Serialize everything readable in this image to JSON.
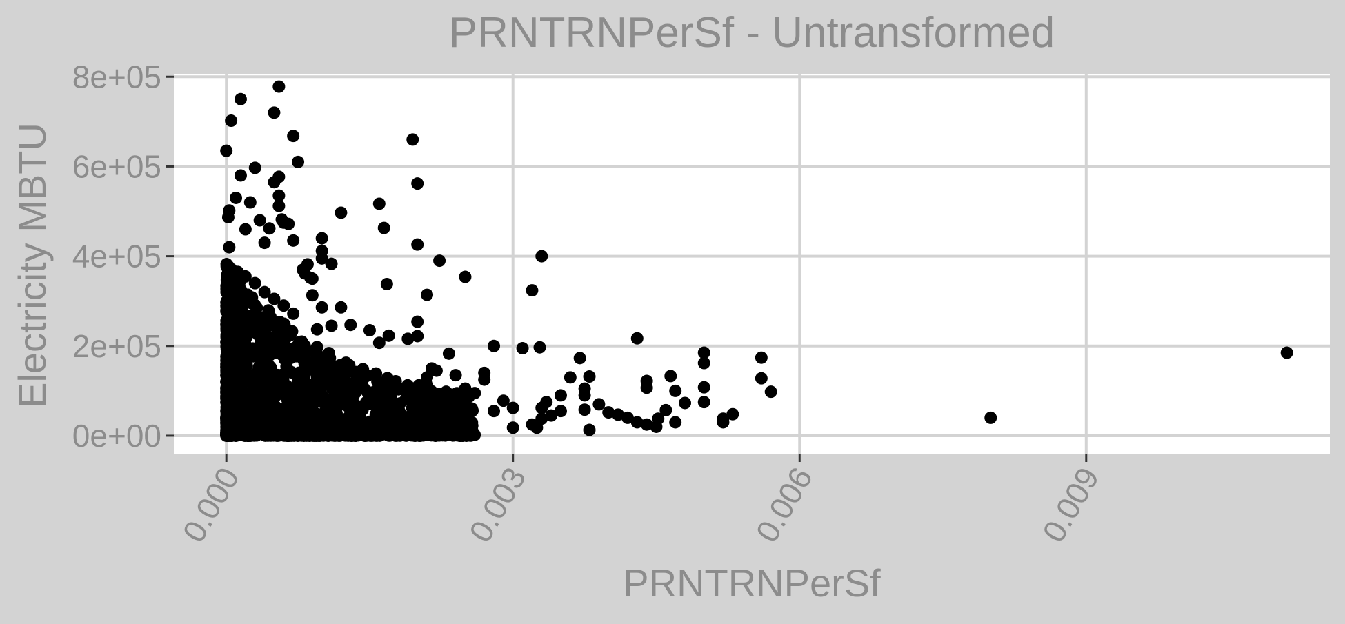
{
  "chart_data": {
    "type": "scatter",
    "title": "PRNTRNPerSf - Untransformed",
    "xlabel": "PRNTRNPerSf",
    "ylabel": "Electricity MBTU",
    "xlim": [
      -0.00055,
      0.01155
    ],
    "ylim": [
      -40000,
      805000
    ],
    "x_ticks": [
      0,
      0.003,
      0.006,
      0.009
    ],
    "x_tick_labels": [
      "0.000",
      "0.003",
      "0.006",
      "0.009"
    ],
    "y_ticks": [
      0,
      200000,
      400000,
      600000,
      800000
    ],
    "y_tick_labels": [
      "0e+00",
      "2e+05",
      "4e+05",
      "6e+05",
      "8e+05"
    ],
    "grid": true,
    "colors": {
      "panel_background": "#ffffff",
      "plot_background": "#d3d3d3",
      "grid": "#d3d3d3",
      "text": "#8c8c8c",
      "points": "#000000"
    },
    "points": [
      [
        0.0,
        635000
      ],
      [
        3e-05,
        502000
      ],
      [
        2e-05,
        487000
      ],
      [
        3e-05,
        420000
      ],
      [
        2e-05,
        378000
      ],
      [
        2e-05,
        370000
      ],
      [
        1e-05,
        350000
      ],
      [
        4e-05,
        300000
      ],
      [
        0.0001,
        530000
      ],
      [
        0.00015,
        580000
      ],
      [
        0.0002,
        460000
      ],
      [
        0.00025,
        520000
      ],
      [
        0.0003,
        597000
      ],
      [
        0.00035,
        480000
      ],
      [
        0.0004,
        430000
      ],
      [
        0.00045,
        462000
      ],
      [
        0.0005,
        565000
      ],
      [
        0.00055,
        577000
      ],
      [
        0.00055,
        535000
      ],
      [
        0.00055,
        512000
      ],
      [
        0.00058,
        482000
      ],
      [
        0.0006,
        475000
      ],
      [
        0.00065,
        472000
      ],
      [
        0.0007,
        435000
      ],
      [
        0.0007,
        668000
      ],
      [
        0.00075,
        610000
      ],
      [
        0.0005,
        720000
      ],
      [
        0.00015,
        750000
      ],
      [
        5e-05,
        702000
      ],
      [
        0.00055,
        778000
      ],
      [
        0.0008,
        370000
      ],
      [
        0.00082,
        362000
      ],
      [
        0.00085,
        382000
      ],
      [
        0.00088,
        352000
      ],
      [
        0.0009,
        350000
      ],
      [
        0.0009,
        313000
      ],
      [
        0.001,
        440000
      ],
      [
        0.001,
        412000
      ],
      [
        0.001,
        395000
      ],
      [
        0.0011,
        383000
      ],
      [
        0.0012,
        497000
      ],
      [
        0.0016,
        517000
      ],
      [
        0.00165,
        463000
      ],
      [
        0.00168,
        338000
      ],
      [
        0.00195,
        660000
      ],
      [
        0.002,
        562000
      ],
      [
        0.002,
        426000
      ],
      [
        0.0021,
        314000
      ],
      [
        0.00223,
        390000
      ],
      [
        0.0025,
        354000
      ],
      [
        0.0033,
        400000
      ],
      [
        0.0032,
        324000
      ],
      [
        0.002,
        254000
      ],
      [
        0.002,
        222000
      ],
      [
        0.0019,
        216000
      ],
      [
        0.0017,
        223000
      ],
      [
        0.0016,
        207000
      ],
      [
        0.0015,
        235000
      ],
      [
        0.0013,
        247000
      ],
      [
        0.0012,
        286000
      ],
      [
        0.001,
        286000
      ],
      [
        0.0011,
        245000
      ],
      [
        0.00095,
        237000
      ],
      [
        0.0007,
        272000
      ],
      [
        0.0006,
        290000
      ],
      [
        0.0005,
        305000
      ],
      [
        0.0004,
        320000
      ],
      [
        0.0003,
        340000
      ],
      [
        0.0002,
        355000
      ],
      [
        0.00012,
        365000
      ],
      [
        0.0028,
        200000
      ],
      [
        0.0031,
        195000
      ],
      [
        0.00328,
        197000
      ],
      [
        0.0037,
        173000
      ],
      [
        0.00233,
        183000
      ],
      [
        0.0043,
        217000
      ],
      [
        0.005,
        185000
      ],
      [
        0.005,
        162000
      ],
      [
        0.005,
        108000
      ],
      [
        0.005,
        75000
      ],
      [
        0.0056,
        174000
      ],
      [
        0.0056,
        128000
      ],
      [
        0.0057,
        98000
      ],
      [
        0.0053,
        48000
      ],
      [
        0.0052,
        30000
      ],
      [
        0.0052,
        38000
      ],
      [
        0.0048,
        73000
      ],
      [
        0.0047,
        100000
      ],
      [
        0.00465,
        133000
      ],
      [
        0.0044,
        122000
      ],
      [
        0.0044,
        107000
      ],
      [
        0.0046,
        57000
      ],
      [
        0.00452,
        38000
      ],
      [
        0.0047,
        30000
      ],
      [
        0.0045,
        20000
      ],
      [
        0.0044,
        25000
      ],
      [
        0.0043,
        30000
      ],
      [
        0.0042,
        40000
      ],
      [
        0.0041,
        47000
      ],
      [
        0.004,
        52000
      ],
      [
        0.0038,
        132000
      ],
      [
        0.0038,
        13000
      ],
      [
        0.0039,
        70000
      ],
      [
        0.00375,
        105000
      ],
      [
        0.00375,
        90000
      ],
      [
        0.00375,
        58000
      ],
      [
        0.0036,
        130000
      ],
      [
        0.0035,
        90000
      ],
      [
        0.0035,
        55000
      ],
      [
        0.0034,
        45000
      ],
      [
        0.00335,
        75000
      ],
      [
        0.0033,
        62000
      ],
      [
        0.0033,
        38000
      ],
      [
        0.0032,
        25000
      ],
      [
        0.00325,
        18000
      ],
      [
        0.003,
        62000
      ],
      [
        0.003,
        18000
      ],
      [
        0.0029,
        78000
      ],
      [
        0.0028,
        55000
      ],
      [
        0.0027,
        140000
      ],
      [
        0.0027,
        125000
      ],
      [
        0.0026,
        95000
      ],
      [
        0.0025,
        105000
      ],
      [
        0.0024,
        135000
      ],
      [
        0.0023,
        98000
      ],
      [
        0.0022,
        145000
      ],
      [
        0.0021,
        130000
      ],
      [
        0.0021,
        115000
      ],
      [
        0.00215,
        150000
      ],
      [
        0.008,
        40000
      ],
      [
        0.0111,
        185000
      ]
    ]
  }
}
